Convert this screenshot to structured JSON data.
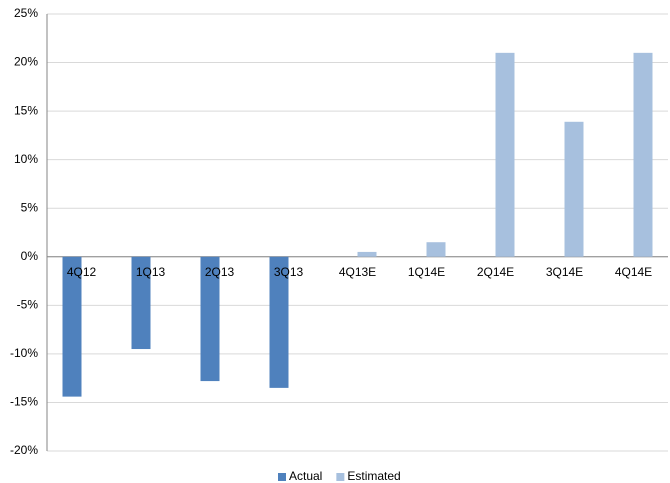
{
  "chart_data": {
    "type": "bar",
    "categories": [
      "4Q12",
      "1Q13",
      "2Q13",
      "3Q13",
      "4Q13E",
      "1Q14E",
      "2Q14E",
      "3Q14E",
      "4Q14E"
    ],
    "series": [
      {
        "name": "Actual",
        "color": "#4f81bd",
        "values": [
          -14.4,
          -9.5,
          -12.8,
          -13.5,
          null,
          null,
          null,
          null,
          null
        ]
      },
      {
        "name": "Estimated",
        "color": "#a7c0de",
        "values": [
          null,
          null,
          null,
          null,
          0.5,
          1.5,
          21.0,
          13.9,
          21.0
        ]
      }
    ],
    "ylim": [
      -20,
      25
    ],
    "yticks": [
      {
        "value": -20,
        "label": "-20%"
      },
      {
        "value": -15,
        "label": "-15%"
      },
      {
        "value": -10,
        "label": "-10%"
      },
      {
        "value": -5,
        "label": "-5%"
      },
      {
        "value": 0,
        "label": "0%"
      },
      {
        "value": 5,
        "label": "5%"
      },
      {
        "value": 10,
        "label": "10%"
      },
      {
        "value": 15,
        "label": "15%"
      },
      {
        "value": 20,
        "label": "20%"
      },
      {
        "value": 25,
        "label": "25%"
      }
    ],
    "grid": true,
    "legend": "bottom"
  }
}
